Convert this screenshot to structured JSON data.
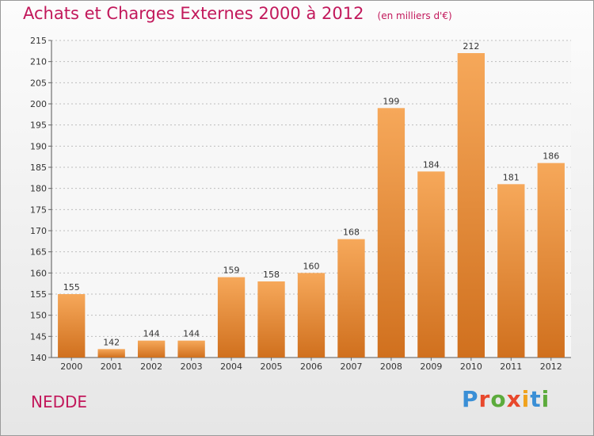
{
  "header": {
    "title": "Achats et Charges Externes 2000 à 2012",
    "unit": "(en milliers d'€)"
  },
  "commune": "NEDDE",
  "logo": {
    "letters": [
      "P",
      "r",
      "o",
      "x",
      "i",
      "t",
      "i"
    ],
    "colors": [
      "#3a8fd6",
      "#e8482c",
      "#5cab3c",
      "#e8482c",
      "#f0a21c",
      "#3a8fd6",
      "#5cab3c"
    ]
  },
  "colors": {
    "title": "#c2185b",
    "bar_top": "#f6a85a",
    "bar_bottom": "#d0701e",
    "grid": "#bdbdbd"
  },
  "chart_data": {
    "type": "bar",
    "title": "Achats et Charges Externes 2000 à 2012",
    "subtitle": "(en milliers d'€)",
    "xlabel": "",
    "ylabel": "",
    "categories": [
      "2000",
      "2001",
      "2002",
      "2003",
      "2004",
      "2005",
      "2006",
      "2007",
      "2008",
      "2009",
      "2010",
      "2011",
      "2012"
    ],
    "values": [
      155,
      142,
      144,
      144,
      159,
      158,
      160,
      168,
      199,
      184,
      212,
      181,
      186
    ],
    "ylim": [
      140,
      215
    ],
    "yticks": [
      140,
      145,
      150,
      155,
      160,
      165,
      170,
      175,
      180,
      185,
      190,
      195,
      200,
      205,
      210,
      215
    ],
    "grid": "horizontal dashed",
    "legend": "none"
  }
}
